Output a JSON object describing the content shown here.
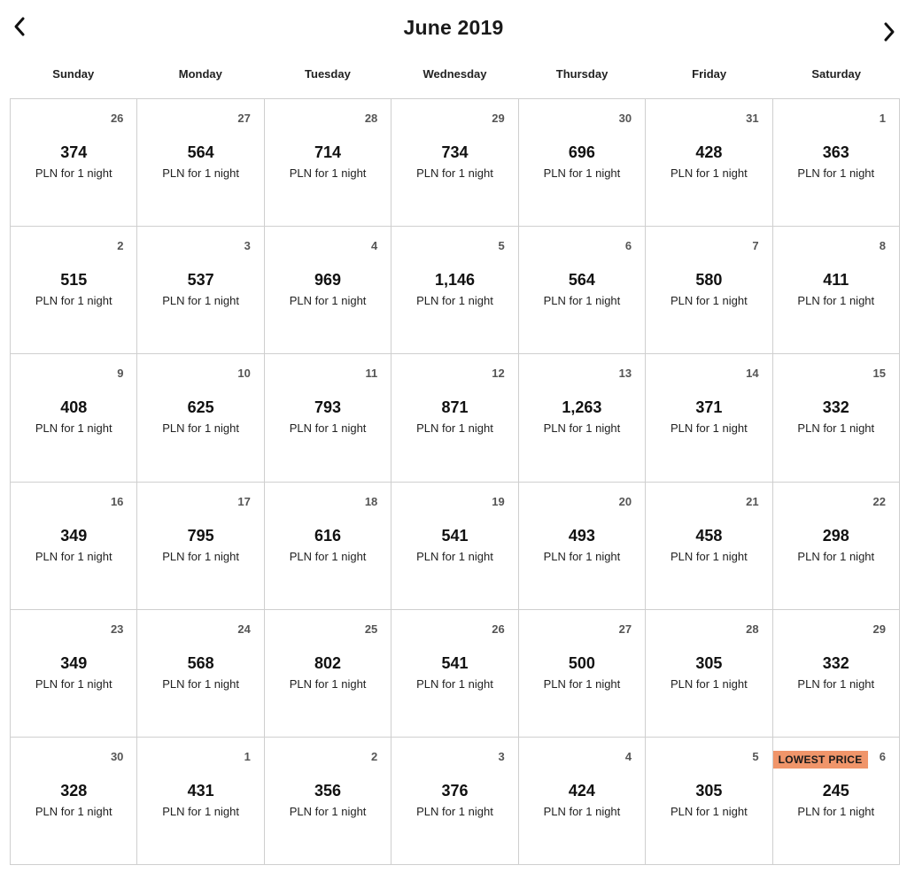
{
  "header": {
    "title": "June 2019",
    "prev_icon": "chevron-left-icon",
    "next_icon": "chevron-right-icon"
  },
  "weekdays": [
    "Sunday",
    "Monday",
    "Tuesday",
    "Wednesday",
    "Thursday",
    "Friday",
    "Saturday"
  ],
  "price_label": "PLN for 1 night",
  "badge_color": "#f0956a",
  "weeks": [
    [
      {
        "day": "26",
        "price": "374"
      },
      {
        "day": "27",
        "price": "564"
      },
      {
        "day": "28",
        "price": "714"
      },
      {
        "day": "29",
        "price": "734"
      },
      {
        "day": "30",
        "price": "696"
      },
      {
        "day": "31",
        "price": "428"
      },
      {
        "day": "1",
        "price": "363"
      }
    ],
    [
      {
        "day": "2",
        "price": "515"
      },
      {
        "day": "3",
        "price": "537"
      },
      {
        "day": "4",
        "price": "969"
      },
      {
        "day": "5",
        "price": "1,146"
      },
      {
        "day": "6",
        "price": "564"
      },
      {
        "day": "7",
        "price": "580"
      },
      {
        "day": "8",
        "price": "411"
      }
    ],
    [
      {
        "day": "9",
        "price": "408"
      },
      {
        "day": "10",
        "price": "625"
      },
      {
        "day": "11",
        "price": "793"
      },
      {
        "day": "12",
        "price": "871"
      },
      {
        "day": "13",
        "price": "1,263"
      },
      {
        "day": "14",
        "price": "371"
      },
      {
        "day": "15",
        "price": "332"
      }
    ],
    [
      {
        "day": "16",
        "price": "349"
      },
      {
        "day": "17",
        "price": "795"
      },
      {
        "day": "18",
        "price": "616"
      },
      {
        "day": "19",
        "price": "541"
      },
      {
        "day": "20",
        "price": "493"
      },
      {
        "day": "21",
        "price": "458"
      },
      {
        "day": "22",
        "price": "298"
      }
    ],
    [
      {
        "day": "23",
        "price": "349"
      },
      {
        "day": "24",
        "price": "568"
      },
      {
        "day": "25",
        "price": "802"
      },
      {
        "day": "26",
        "price": "541"
      },
      {
        "day": "27",
        "price": "500"
      },
      {
        "day": "28",
        "price": "305"
      },
      {
        "day": "29",
        "price": "332"
      }
    ],
    [
      {
        "day": "30",
        "price": "328"
      },
      {
        "day": "1",
        "price": "431"
      },
      {
        "day": "2",
        "price": "356"
      },
      {
        "day": "3",
        "price": "376"
      },
      {
        "day": "4",
        "price": "424"
      },
      {
        "day": "5",
        "price": "305"
      },
      {
        "day": "6",
        "price": "245",
        "badge": "LOWEST PRICE"
      }
    ]
  ]
}
